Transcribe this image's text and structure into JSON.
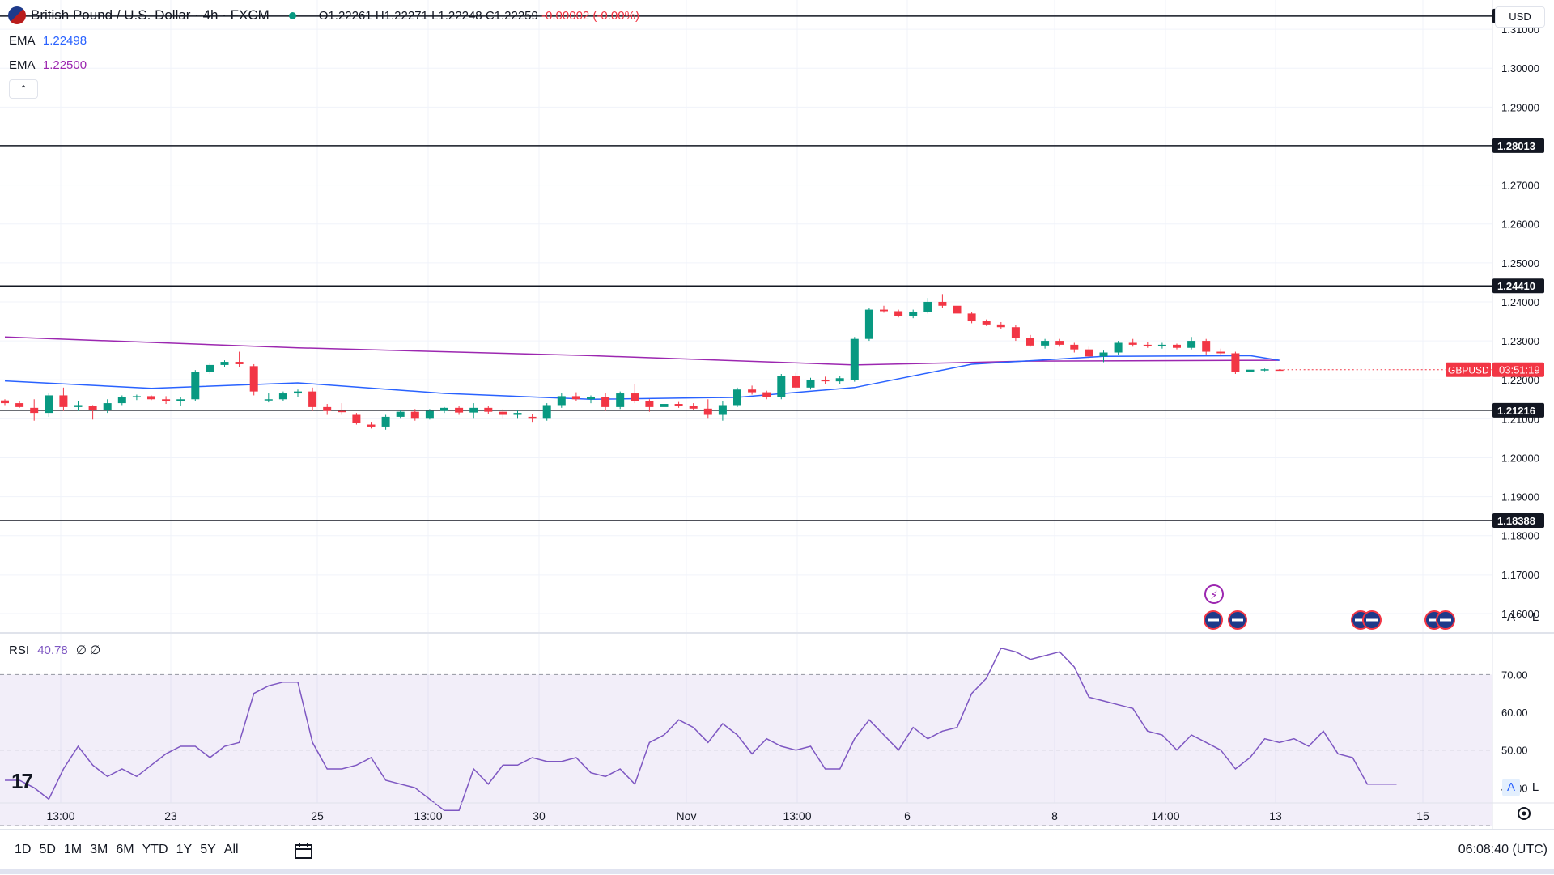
{
  "header": {
    "symbol_title": "British Pound / U.S. Dollar · 4h · FXCM",
    "open": "O1.22261",
    "high": "H1.22271",
    "low": "L1.22248",
    "close": "C1.22259",
    "change": "-0.00002 (-0.00%)"
  },
  "indicators": {
    "ema1_label": "EMA",
    "ema1_value": "1.22498",
    "ema2_label": "EMA",
    "ema2_value": "1.22500",
    "rsi_label": "RSI",
    "rsi_value": "40.78",
    "rsi_extra": "∅ ∅"
  },
  "currency_button": "USD",
  "symbol_tag": "GBPUSD",
  "countdown": "03:51:19",
  "price_axis": [
    "1.31000",
    "1.30000",
    "1.29000",
    "1.27000",
    "1.26000",
    "1.25000",
    "1.24000",
    "1.23000",
    "1.22000",
    "1.21000",
    "1.20000",
    "1.19000",
    "1.18000",
    "1.17000",
    "1.16000"
  ],
  "level_labels": [
    "1.31337",
    "1.28013",
    "1.24410",
    "1.21216",
    "1.18388"
  ],
  "rsi_axis": [
    "70.00",
    "60.00",
    "50.00",
    "40.00"
  ],
  "time_axis": [
    "13:00",
    "23",
    "25",
    "13:00",
    "30",
    "Nov",
    "13:00",
    "6",
    "8",
    "14:00",
    "13",
    "15"
  ],
  "toggles": {
    "auto": "A",
    "log": "L"
  },
  "range_buttons": [
    "1D",
    "5D",
    "1M",
    "3M",
    "6M",
    "YTD",
    "1Y",
    "5Y",
    "All"
  ],
  "clock": "06:08:40 (UTC)",
  "colors": {
    "up": "#089981",
    "down": "#f23645",
    "ema_fast": "#2962ff",
    "ema_slow": "#9c27b0",
    "rsi": "#7e57c2"
  },
  "chart_data": {
    "type": "candlestick",
    "timeframe": "4h",
    "ylim": [
      1.155,
      1.3175
    ],
    "horizontal_levels": [
      1.31337,
      1.28013,
      1.2441,
      1.21216,
      1.18388
    ],
    "candles": [
      [
        1.2147,
        1.215,
        1.2135,
        1.214
      ],
      [
        1.214,
        1.2145,
        1.2128,
        1.213
      ],
      [
        1.2128,
        1.215,
        1.2095,
        1.2115
      ],
      [
        1.2115,
        1.2165,
        1.2105,
        1.216
      ],
      [
        1.216,
        1.218,
        1.212,
        1.213
      ],
      [
        1.213,
        1.2145,
        1.212,
        1.2135
      ],
      [
        1.2133,
        1.2135,
        1.2098,
        1.2122
      ],
      [
        1.2122,
        1.215,
        1.2115,
        1.214
      ],
      [
        1.214,
        1.216,
        1.2135,
        1.2155
      ],
      [
        1.2155,
        1.2162,
        1.2148,
        1.2158
      ],
      [
        1.2158,
        1.216,
        1.2148,
        1.215
      ],
      [
        1.215,
        1.2158,
        1.2138,
        1.2145
      ],
      [
        1.2145,
        1.2155,
        1.2132,
        1.215
      ],
      [
        1.215,
        1.2225,
        1.2145,
        1.222
      ],
      [
        1.222,
        1.2242,
        1.2215,
        1.2238
      ],
      [
        1.2238,
        1.225,
        1.2232,
        1.2246
      ],
      [
        1.2246,
        1.2272,
        1.2232,
        1.224
      ],
      [
        1.2235,
        1.224,
        1.216,
        1.217
      ],
      [
        1.215,
        1.2165,
        1.2142,
        1.215
      ],
      [
        1.215,
        1.217,
        1.2145,
        1.2165
      ],
      [
        1.2165,
        1.2175,
        1.2155,
        1.217
      ],
      [
        1.217,
        1.218,
        1.212,
        1.213
      ],
      [
        1.213,
        1.2138,
        1.211,
        1.212
      ],
      [
        1.212,
        1.214,
        1.211,
        1.2118
      ],
      [
        1.211,
        1.2115,
        1.2085,
        1.209
      ],
      [
        1.2085,
        1.2092,
        1.2075,
        1.208
      ],
      [
        1.208,
        1.211,
        1.2072,
        1.2105
      ],
      [
        1.2105,
        1.2122,
        1.21,
        1.2118
      ],
      [
        1.2118,
        1.2125,
        1.2095,
        1.21
      ],
      [
        1.21,
        1.2125,
        1.2098,
        1.212
      ],
      [
        1.212,
        1.213,
        1.2115,
        1.2128
      ],
      [
        1.2128,
        1.2132,
        1.211,
        1.2116
      ],
      [
        1.2116,
        1.214,
        1.21,
        1.2128
      ],
      [
        1.2128,
        1.2132,
        1.2112,
        1.2118
      ],
      [
        1.2118,
        1.2125,
        1.21,
        1.211
      ],
      [
        1.211,
        1.2122,
        1.21,
        1.2115
      ],
      [
        1.2105,
        1.2112,
        1.2092,
        1.21
      ],
      [
        1.21,
        1.214,
        1.2095,
        1.2135
      ],
      [
        1.2135,
        1.2165,
        1.2128,
        1.2158
      ],
      [
        1.2158,
        1.2168,
        1.2145,
        1.215
      ],
      [
        1.215,
        1.216,
        1.214,
        1.2155
      ],
      [
        1.2155,
        1.2165,
        1.212,
        1.213
      ],
      [
        1.213,
        1.217,
        1.2125,
        1.2165
      ],
      [
        1.2165,
        1.219,
        1.214,
        1.2145
      ],
      [
        1.2145,
        1.215,
        1.2118,
        1.213
      ],
      [
        1.213,
        1.214,
        1.2125,
        1.2138
      ],
      [
        1.2138,
        1.2143,
        1.2128,
        1.2132
      ],
      [
        1.2132,
        1.214,
        1.2122,
        1.2126
      ],
      [
        1.2126,
        1.215,
        1.21,
        1.211
      ],
      [
        1.211,
        1.2145,
        1.2095,
        1.2135
      ],
      [
        1.2135,
        1.218,
        1.213,
        1.2175
      ],
      [
        1.2175,
        1.2185,
        1.2162,
        1.2168
      ],
      [
        1.2168,
        1.2172,
        1.215,
        1.2155
      ],
      [
        1.2155,
        1.2215,
        1.215,
        1.221
      ],
      [
        1.221,
        1.2218,
        1.2175,
        1.218
      ],
      [
        1.218,
        1.2205,
        1.2175,
        1.22
      ],
      [
        1.22,
        1.2208,
        1.2188,
        1.2196
      ],
      [
        1.2196,
        1.221,
        1.219,
        1.2204
      ],
      [
        1.22,
        1.231,
        1.2195,
        1.2305
      ],
      [
        1.2305,
        1.2385,
        1.23,
        1.238
      ],
      [
        1.238,
        1.239,
        1.2372,
        1.2376
      ],
      [
        1.2376,
        1.238,
        1.236,
        1.2364
      ],
      [
        1.2364,
        1.238,
        1.2358,
        1.2375
      ],
      [
        1.2375,
        1.241,
        1.237,
        1.24
      ],
      [
        1.24,
        1.242,
        1.2385,
        1.239
      ],
      [
        1.239,
        1.2395,
        1.2365,
        1.237
      ],
      [
        1.237,
        1.2375,
        1.2345,
        1.235
      ],
      [
        1.235,
        1.2355,
        1.2338,
        1.2342
      ],
      [
        1.2342,
        1.2348,
        1.233,
        1.2335
      ],
      [
        1.2335,
        1.234,
        1.23,
        1.2308
      ],
      [
        1.2308,
        1.2315,
        1.2285,
        1.2288
      ],
      [
        1.2288,
        1.2305,
        1.228,
        1.23
      ],
      [
        1.23,
        1.2305,
        1.2285,
        1.229
      ],
      [
        1.229,
        1.2295,
        1.227,
        1.2278
      ],
      [
        1.2278,
        1.2285,
        1.2255,
        1.226
      ],
      [
        1.226,
        1.2275,
        1.2245,
        1.227
      ],
      [
        1.227,
        1.23,
        1.2265,
        1.2295
      ],
      [
        1.2295,
        1.2305,
        1.2285,
        1.229
      ],
      [
        1.229,
        1.2298,
        1.2282,
        1.2287
      ],
      [
        1.2287,
        1.2295,
        1.228,
        1.229
      ],
      [
        1.229,
        1.2293,
        1.2278,
        1.2282
      ],
      [
        1.2282,
        1.231,
        1.2278,
        1.23
      ],
      [
        1.23,
        1.2305,
        1.2265,
        1.2272
      ],
      [
        1.2272,
        1.228,
        1.2262,
        1.2268
      ],
      [
        1.2268,
        1.2272,
        1.2215,
        1.222
      ],
      [
        1.222,
        1.223,
        1.2215,
        1.2226
      ],
      [
        1.2224,
        1.2229,
        1.2222,
        1.2227
      ],
      [
        1.22261,
        1.22271,
        1.22248,
        1.22259
      ]
    ],
    "ema_fast": [
      [
        0,
        1.2197
      ],
      [
        10,
        1.2178
      ],
      [
        20,
        1.2192
      ],
      [
        30,
        1.2165
      ],
      [
        40,
        1.215
      ],
      [
        50,
        1.2155
      ],
      [
        58,
        1.218
      ],
      [
        66,
        1.224
      ],
      [
        75,
        1.226
      ],
      [
        85,
        1.2262
      ],
      [
        87,
        1.225
      ]
    ],
    "ema_slow": [
      [
        0,
        1.231
      ],
      [
        20,
        1.2282
      ],
      [
        40,
        1.2262
      ],
      [
        58,
        1.2238
      ],
      [
        70,
        1.2248
      ],
      [
        87,
        1.225
      ]
    ],
    "rsi": {
      "levels": [
        70,
        50,
        30
      ],
      "values": [
        42,
        42,
        40,
        37,
        45,
        51,
        46,
        43,
        45,
        43,
        46,
        49,
        51,
        51,
        48,
        51,
        52,
        65,
        67,
        68,
        68,
        52,
        45,
        45,
        46,
        48,
        42,
        41,
        40,
        37,
        34,
        34,
        45,
        41,
        46,
        46,
        48,
        47,
        47,
        48,
        44,
        43,
        45,
        41,
        52,
        54,
        58,
        56,
        52,
        57,
        54,
        49,
        53,
        51,
        50,
        51,
        45,
        45,
        53,
        58,
        54,
        50,
        56,
        53,
        55,
        56,
        65,
        69,
        77,
        76,
        74,
        75,
        76,
        72,
        64,
        63,
        62,
        61,
        55,
        54,
        50,
        54,
        52,
        50,
        45,
        48,
        53,
        52,
        53,
        51,
        55,
        49,
        48,
        41,
        41,
        41
      ]
    }
  }
}
